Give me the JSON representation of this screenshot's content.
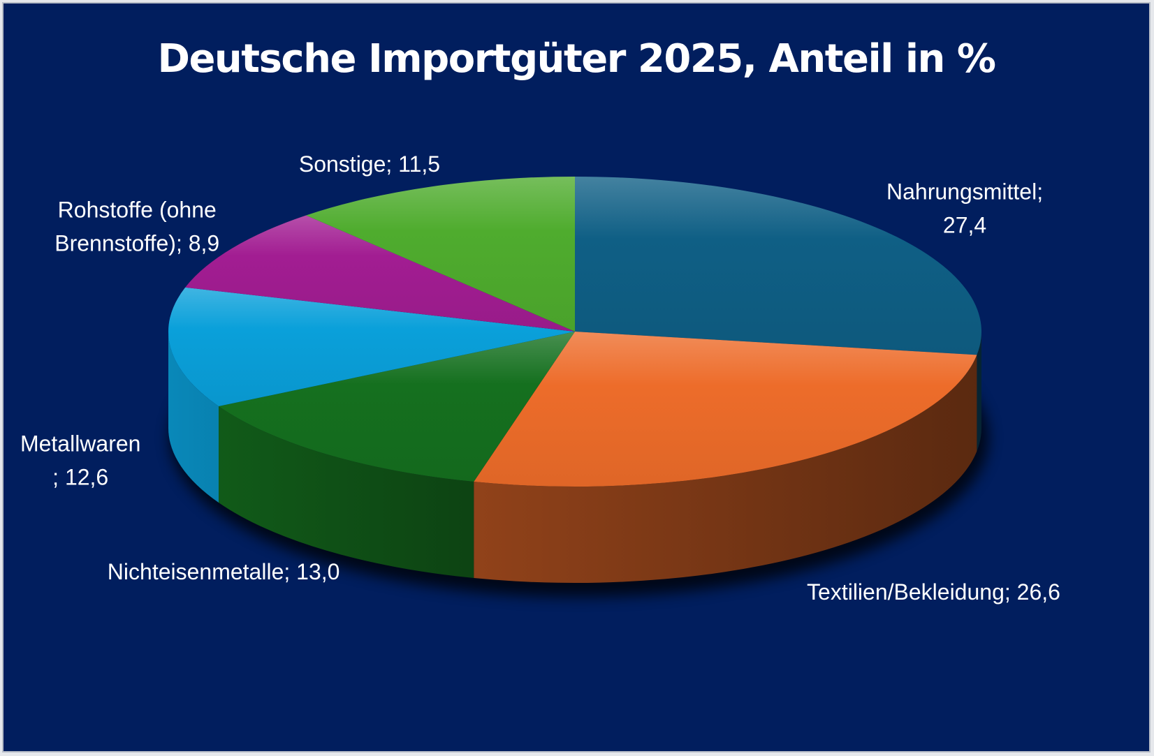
{
  "colors": {
    "background": "#011E5E",
    "title": "#FFFFFF",
    "label": "#FFFFFF"
  },
  "chart_data": {
    "type": "pie",
    "style": "3d",
    "title": "Deutsche Importgüter 2025, Anteil in %",
    "legend": "none",
    "slices": [
      {
        "category": "Nahrungsmittel",
        "value": 27.4,
        "label_lines": [
          "Nahrungsmittel;",
          "27,4"
        ],
        "color": "#0F5F85"
      },
      {
        "category": "Textilien/Bekleidung",
        "value": 26.6,
        "label_lines": [
          "Textilien/Bekleidung; 26,6"
        ],
        "color": "#ED6C2A"
      },
      {
        "category": "Nichteisenmetalle",
        "value": 13.0,
        "label_lines": [
          "Nichteisenmetalle; 13,0"
        ],
        "color": "#15701F"
      },
      {
        "category": "Metallwaren",
        "value": 12.6,
        "label_lines": [
          "Metallwaren",
          "; 12,6"
        ],
        "color": "#0AA0DA"
      },
      {
        "category": "Rohstoffe (ohne Brennstoffe)",
        "value": 8.9,
        "label_lines": [
          "Rohstoffe (ohne",
          "Brennstoffe); 8,9"
        ],
        "color": "#A21D92"
      },
      {
        "category": "Sonstige",
        "value": 11.5,
        "label_lines": [
          "Sonstige; 11,5"
        ],
        "color": "#4FAC2E"
      }
    ]
  }
}
